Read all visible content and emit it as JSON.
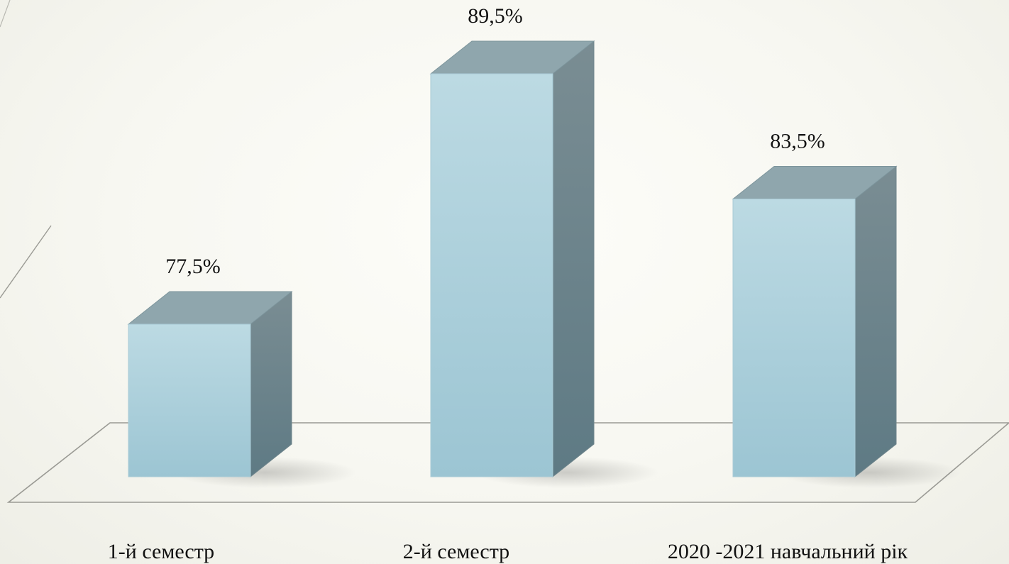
{
  "chart_data": {
    "type": "bar",
    "style": "3d-column",
    "categories": [
      "1-й семестр",
      "2-й семестр",
      "2020 -2021 навчальний рік"
    ],
    "values": [
      77.5,
      89.5,
      83.5
    ],
    "value_labels": [
      "77,5%",
      "89,5%",
      "83,5%"
    ],
    "title": "",
    "xlabel": "",
    "ylabel": "",
    "legend": "none",
    "grid": false,
    "colors": {
      "front_top": "#bcdae3",
      "front_bottom": "#9cc5d3",
      "side_top": "#7a8d93",
      "side_bottom": "#5e7a84",
      "top": "#8fa6ad",
      "floor_line": "#9a9a94"
    }
  }
}
